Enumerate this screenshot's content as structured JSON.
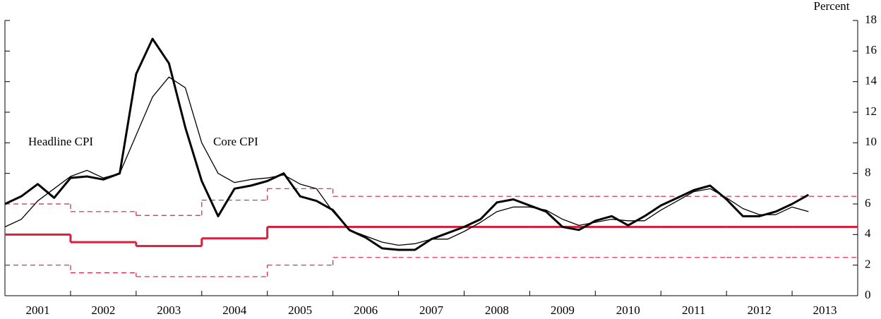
{
  "chart_data": {
    "type": "line",
    "y_axis_label": "Percent",
    "x": [
      2001,
      2001.25,
      2001.5,
      2001.75,
      2002,
      2002.25,
      2002.5,
      2002.75,
      2003,
      2003.25,
      2003.5,
      2003.75,
      2004,
      2004.25,
      2004.5,
      2004.75,
      2005,
      2005.25,
      2005.5,
      2005.75,
      2006,
      2006.25,
      2006.5,
      2006.75,
      2007,
      2007.25,
      2007.5,
      2007.75,
      2008,
      2008.25,
      2008.5,
      2008.75,
      2009,
      2009.25,
      2009.5,
      2009.75,
      2010,
      2010.25,
      2010.5,
      2010.75,
      2011,
      2011.25,
      2011.5,
      2011.75,
      2012,
      2012.25,
      2012.5,
      2012.75,
      2013,
      2013.25
    ],
    "series": [
      {
        "name": "Headline CPI",
        "color": "#000000",
        "width": 3,
        "values": [
          6.0,
          6.5,
          7.3,
          6.4,
          7.7,
          7.8,
          7.6,
          8.0,
          14.5,
          16.8,
          15.2,
          11.0,
          7.5,
          5.2,
          7.0,
          7.2,
          7.5,
          8.0,
          6.5,
          6.2,
          5.6,
          4.3,
          3.8,
          3.1,
          3.0,
          3.0,
          3.7,
          4.1,
          4.5,
          5.0,
          6.1,
          6.3,
          5.9,
          5.5,
          4.5,
          4.3,
          4.9,
          5.2,
          4.6,
          5.2,
          5.9,
          6.4,
          6.9,
          7.2,
          6.3,
          5.2,
          5.2,
          5.5,
          6.0,
          6.6
        ]
      },
      {
        "name": "Core CPI",
        "color": "#000000",
        "width": 1.3,
        "values": [
          4.5,
          5.0,
          6.2,
          7.0,
          7.8,
          8.2,
          7.7,
          8.0,
          10.5,
          13.0,
          14.3,
          13.6,
          10.0,
          8.0,
          7.4,
          7.6,
          7.7,
          7.9,
          7.3,
          7.0,
          5.5,
          4.3,
          3.9,
          3.5,
          3.3,
          3.4,
          3.7,
          3.7,
          4.2,
          4.8,
          5.5,
          5.8,
          5.8,
          5.6,
          5.0,
          4.6,
          4.8,
          5.0,
          4.9,
          4.9,
          5.6,
          6.2,
          6.8,
          7.0,
          6.4,
          5.7,
          5.3,
          5.3,
          5.8,
          5.5
        ]
      }
    ],
    "step_series": [
      {
        "color": "#d4213d",
        "width": 3,
        "dashed": false,
        "x": [
          2001,
          2002,
          2003,
          2004,
          2005,
          2006,
          2007,
          2008,
          2009,
          2010,
          2011,
          2012,
          2013
        ],
        "values": [
          4.0,
          3.5,
          3.25,
          3.75,
          4.5,
          4.5,
          4.5,
          4.5,
          4.5,
          4.5,
          4.5,
          4.5,
          4.5
        ]
      },
      {
        "color": "#d4213d",
        "width": 1.2,
        "dashed": true,
        "x": [
          2001,
          2002,
          2003,
          2004,
          2005,
          2006,
          2007,
          2008,
          2009,
          2010,
          2011,
          2012,
          2013
        ],
        "values": [
          6.0,
          5.5,
          5.25,
          6.25,
          7.0,
          6.5,
          6.5,
          6.5,
          6.5,
          6.5,
          6.5,
          6.5,
          6.5
        ]
      },
      {
        "color": "#d4213d",
        "width": 1.2,
        "dashed": true,
        "x": [
          2001,
          2002,
          2003,
          2004,
          2005,
          2006,
          2007,
          2008,
          2009,
          2010,
          2011,
          2012,
          2013
        ],
        "values": [
          2.0,
          1.5,
          1.25,
          1.25,
          2.0,
          2.5,
          2.5,
          2.5,
          2.5,
          2.5,
          2.5,
          2.5,
          2.5
        ]
      }
    ],
    "xlim": [
      2001,
      2014
    ],
    "xticks": [
      {
        "value": 2001.5,
        "label": "2001"
      },
      {
        "value": 2002.5,
        "label": "2002"
      },
      {
        "value": 2003.5,
        "label": "2003"
      },
      {
        "value": 2004.5,
        "label": "2004"
      },
      {
        "value": 2005.5,
        "label": "2005"
      },
      {
        "value": 2006.5,
        "label": "2006"
      },
      {
        "value": 2007.5,
        "label": "2007"
      },
      {
        "value": 2008.5,
        "label": "2008"
      },
      {
        "value": 2009.5,
        "label": "2009"
      },
      {
        "value": 2010.5,
        "label": "2010"
      },
      {
        "value": 2011.5,
        "label": "2011"
      },
      {
        "value": 2012.5,
        "label": "2012"
      },
      {
        "value": 2013.5,
        "label": "2013"
      }
    ],
    "ylim": [
      0,
      18
    ],
    "yticks": [
      0,
      2,
      4,
      6,
      8,
      10,
      12,
      14,
      16,
      18
    ]
  }
}
